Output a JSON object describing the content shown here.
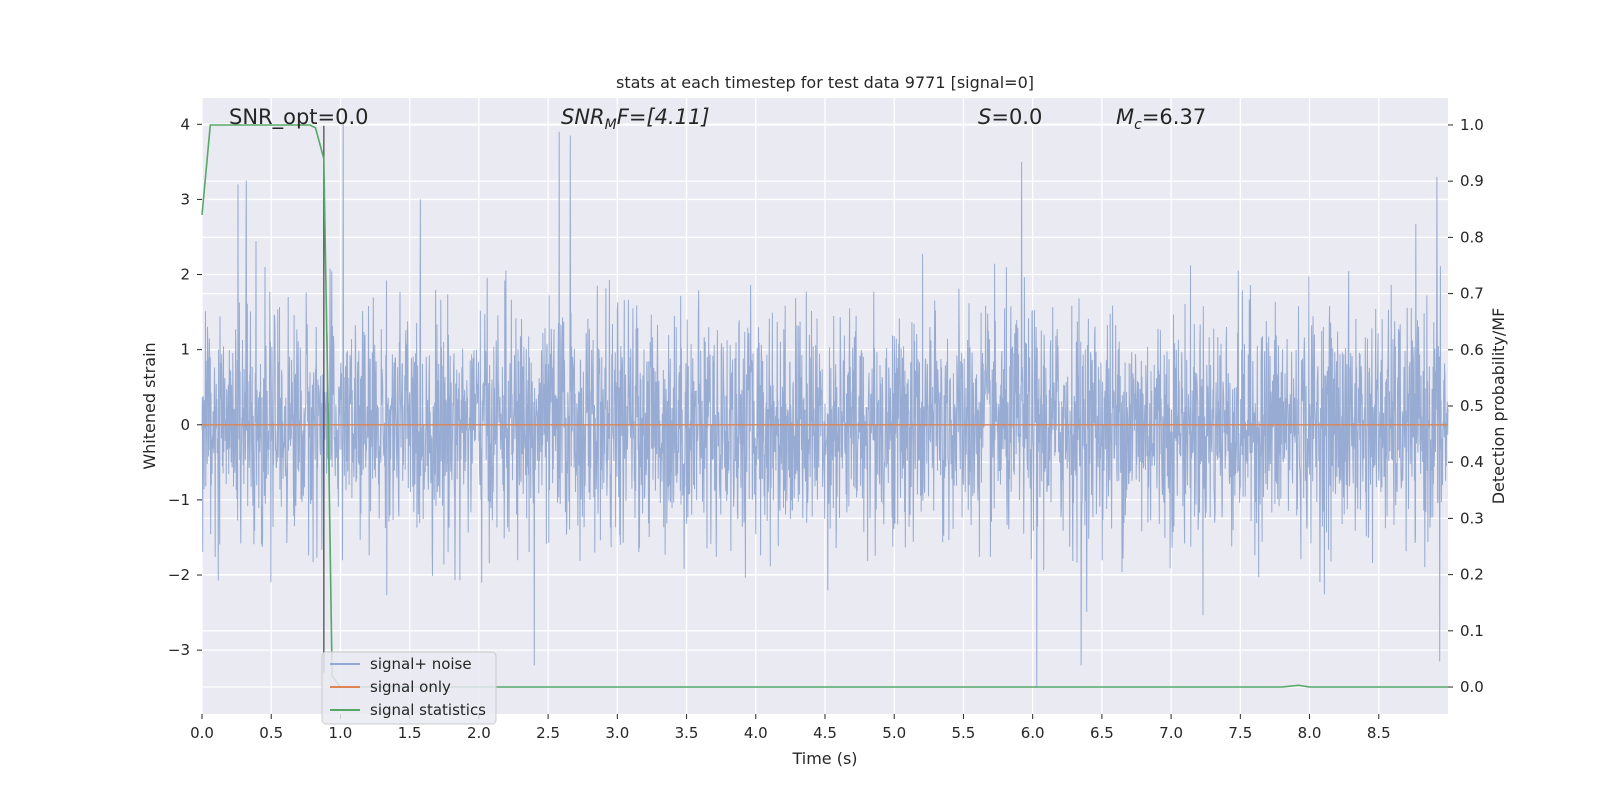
{
  "chart_data": {
    "type": "line",
    "title": "stats at each timestep for test data 9771 [signal=0]",
    "xlabel": "Time (s)",
    "ylabel": "Whitened strain",
    "y2label": "Detection probability/MF",
    "xlim": [
      0,
      9.0
    ],
    "ylim": [
      -3.85,
      4.35
    ],
    "y2lim": [
      -0.048,
      1.048
    ],
    "x_ticks": [
      "0.0",
      "0.5",
      "1.0",
      "1.5",
      "2.0",
      "2.5",
      "3.0",
      "3.5",
      "4.0",
      "4.5",
      "5.0",
      "5.5",
      "6.0",
      "6.5",
      "7.0",
      "7.5",
      "8.0",
      "8.5"
    ],
    "y_ticks": [
      "4",
      "3",
      "2",
      "1",
      "0",
      "−1",
      "−2",
      "−3"
    ],
    "y_tick_values": [
      4,
      3,
      2,
      1,
      0,
      -1,
      -2,
      -3
    ],
    "y2_ticks": [
      "1.0",
      "0.9",
      "0.8",
      "0.7",
      "0.6",
      "0.5",
      "0.4",
      "0.3",
      "0.2",
      "0.1",
      "0.0"
    ],
    "y2_tick_values": [
      1.0,
      0.9,
      0.8,
      0.7,
      0.6,
      0.5,
      0.4,
      0.3,
      0.2,
      0.1,
      0.0
    ],
    "grid": true,
    "legend_position": "lower-left",
    "annotations": {
      "snr_opt": "SNR_opt=0.0",
      "snr_mf_main": "SNR",
      "snr_mf_sub": "M",
      "snr_mf_rest": "F=[4.11]",
      "s_main": "S",
      "s_rest": "=0.0",
      "mc_main": "M",
      "mc_sub": "c",
      "mc_rest": "=6.37"
    },
    "marker_line_x": 0.88,
    "series": [
      {
        "name": "signal+ noise",
        "color": "#92a8d1",
        "description_kind": "noise",
        "noise_std": 0.75,
        "peaks": [
          [
            0.26,
            3.2
          ],
          [
            0.32,
            3.25
          ],
          [
            1.02,
            4.0
          ],
          [
            2.58,
            3.9
          ],
          [
            2.66,
            3.85
          ],
          [
            5.92,
            3.5
          ],
          [
            6.03,
            -3.5
          ],
          [
            8.92,
            3.3
          ],
          [
            8.94,
            -3.15
          ],
          [
            2.4,
            -3.2
          ],
          [
            6.35,
            -3.2
          ]
        ]
      },
      {
        "name": "signal only",
        "color": "#dd8452",
        "x": [
          0,
          9.0
        ],
        "y": [
          0,
          0
        ]
      },
      {
        "name": "signal statistics",
        "color": "#55a868",
        "axis": "y2",
        "x": [
          0.0,
          0.06,
          0.1,
          0.2,
          0.4,
          0.6,
          0.78,
          0.82,
          0.88,
          0.91,
          0.94,
          1.0,
          2.0,
          4.0,
          6.0,
          7.8,
          7.92,
          8.0,
          8.5,
          9.0
        ],
        "y": [
          0.84,
          1.0,
          1.0,
          1.0,
          1.0,
          1.0,
          1.0,
          0.995,
          0.94,
          0.5,
          0.02,
          0.0,
          0.0,
          0.0,
          0.0,
          0.0,
          0.003,
          0.0,
          0.0,
          0.0
        ]
      }
    ]
  }
}
